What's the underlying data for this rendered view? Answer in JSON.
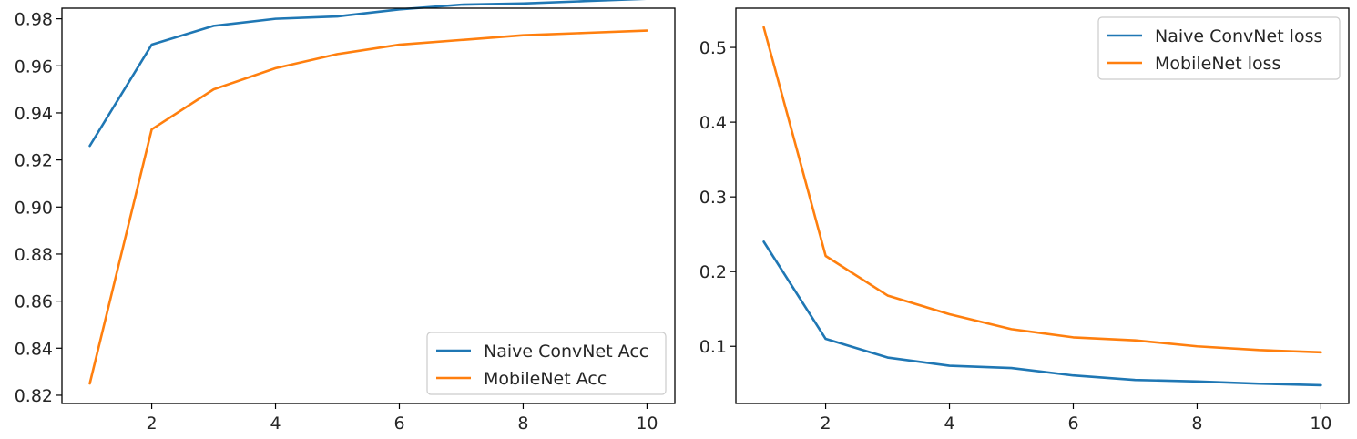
{
  "chart_data": [
    {
      "type": "line",
      "title": "",
      "xlabel": "",
      "ylabel": "",
      "x": [
        1,
        2,
        3,
        4,
        5,
        6,
        7,
        8,
        9,
        10
      ],
      "xlim": [
        0.55,
        10.45
      ],
      "ylim": [
        0.8165,
        0.9845
      ],
      "xticks": [
        2,
        4,
        6,
        8,
        10
      ],
      "xtick_labels": [
        "2",
        "4",
        "6",
        "8",
        "10"
      ],
      "yticks": [
        0.82,
        0.84,
        0.86,
        0.88,
        0.9,
        0.92,
        0.94,
        0.96,
        0.98
      ],
      "ytick_labels": [
        "0.82",
        "0.84",
        "0.86",
        "0.88",
        "0.90",
        "0.92",
        "0.94",
        "0.96",
        "0.98"
      ],
      "grid": false,
      "legend_position": "lower-right",
      "series": [
        {
          "name": "Naive ConvNet Acc",
          "color": "#1f77b4",
          "values": [
            0.926,
            0.969,
            0.977,
            0.98,
            0.981,
            0.984,
            0.986,
            0.9865,
            0.9875,
            0.9885
          ]
        },
        {
          "name": "MobileNet Acc",
          "color": "#ff7f0e",
          "values": [
            0.825,
            0.933,
            0.95,
            0.959,
            0.965,
            0.969,
            0.971,
            0.973,
            0.974,
            0.975
          ]
        }
      ]
    },
    {
      "type": "line",
      "title": "",
      "xlabel": "",
      "ylabel": "",
      "x": [
        1,
        2,
        3,
        4,
        5,
        6,
        7,
        8,
        9,
        10
      ],
      "xlim": [
        0.55,
        10.45
      ],
      "ylim": [
        0.0235,
        0.5525
      ],
      "xticks": [
        2,
        4,
        6,
        8,
        10
      ],
      "xtick_labels": [
        "2",
        "4",
        "6",
        "8",
        "10"
      ],
      "yticks": [
        0.1,
        0.2,
        0.3,
        0.4,
        0.5
      ],
      "ytick_labels": [
        "0.1",
        "0.2",
        "0.3",
        "0.4",
        "0.5"
      ],
      "grid": false,
      "legend_position": "upper-right",
      "series": [
        {
          "name": "Naive ConvNet loss",
          "color": "#1f77b4",
          "values": [
            0.24,
            0.11,
            0.085,
            0.074,
            0.071,
            0.061,
            0.055,
            0.053,
            0.05,
            0.048
          ]
        },
        {
          "name": "MobileNet loss",
          "color": "#ff7f0e",
          "values": [
            0.527,
            0.221,
            0.168,
            0.143,
            0.123,
            0.112,
            0.108,
            0.1,
            0.095,
            0.092
          ]
        }
      ]
    }
  ]
}
